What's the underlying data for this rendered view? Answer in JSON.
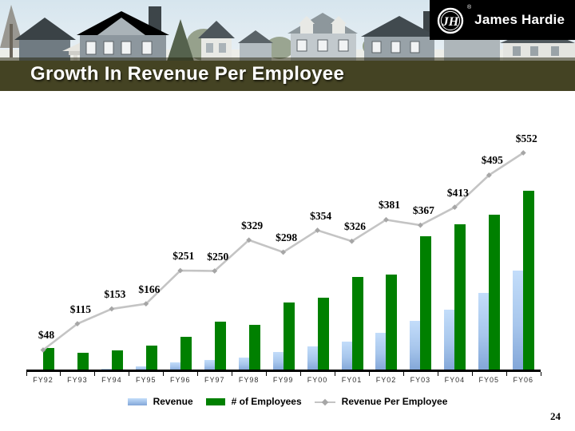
{
  "slide": {
    "title": "Growth In Revenue Per Employee",
    "page_number": "24",
    "logo": {
      "brand": "James Hardie",
      "monogram": "JH",
      "registered_mark": "®"
    }
  },
  "chart_data": {
    "type": "combo (bar x2 + line)",
    "title": "Growth In Revenue Per Employee",
    "categories": [
      "FY92",
      "FY93",
      "FY94",
      "FY95",
      "FY96",
      "FY97",
      "FY98",
      "FY99",
      "FY00",
      "FY01",
      "FY02",
      "FY03",
      "FY04",
      "FY05",
      "FY06"
    ],
    "series": [
      {
        "name": "Revenue",
        "type": "bar",
        "color_top": "#c3ddfa",
        "color_bottom": "#82a6d8",
        "units": "relative height px (value axis not shown in chart)",
        "values": [
          0,
          0,
          2,
          5,
          10,
          13,
          16,
          23,
          30,
          36,
          47,
          62,
          76,
          97,
          125
        ]
      },
      {
        "name": "# of Employees",
        "type": "bar",
        "color": "#008000",
        "units": "relative height px (value axis not shown in chart)",
        "values": [
          28,
          22,
          25,
          31,
          42,
          61,
          57,
          85,
          91,
          117,
          120,
          168,
          183,
          195,
          225
        ]
      },
      {
        "name": "Revenue Per Employee",
        "type": "line",
        "color": "#c4c4c4",
        "marker_color": "#a6a6a6",
        "values": [
          48,
          115,
          153,
          166,
          251,
          250,
          329,
          298,
          354,
          326,
          381,
          367,
          413,
          495,
          552
        ],
        "point_labels": [
          "$48",
          "$115",
          "$153",
          "$166",
          "$251",
          "$250",
          "$329",
          "$298",
          "$354",
          "$326",
          "$381",
          "$367",
          "$413",
          "$495",
          "$552"
        ]
      }
    ],
    "axes": {
      "y_axis_visible": false,
      "gridlines": false,
      "x_tick_labels": "category boundaries ticked"
    },
    "legend_position": "bottom"
  },
  "legend": {
    "items": [
      {
        "label": "Revenue",
        "swatch": "revenue"
      },
      {
        "label": "# of Employees",
        "swatch": "employees"
      },
      {
        "label": "Revenue Per Employee",
        "swatch": "line"
      }
    ]
  }
}
